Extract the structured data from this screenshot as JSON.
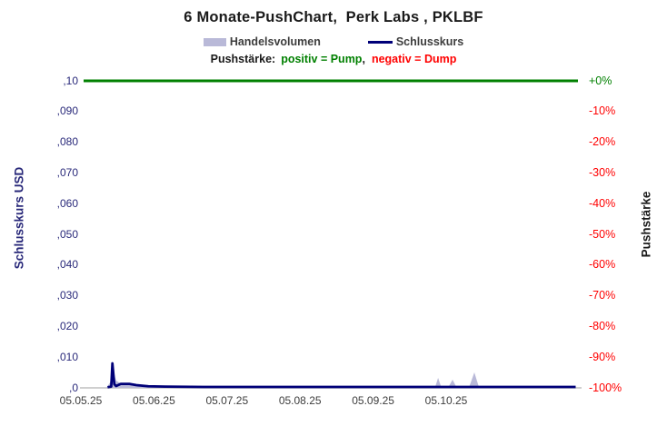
{
  "header": {
    "title": "6 Monate-PushChart,  Perk Labs , PKLBF"
  },
  "legend": {
    "volume_label": "Handelsvolumen",
    "close_label": "Schlusskurs"
  },
  "subtitle": {
    "prefix": "Pushstärke:",
    "positive": "positiv = Pump",
    "comma": ",",
    "negative": "negativ = Dump"
  },
  "colors": {
    "close_line": "#000078",
    "volume_fill": "#b9b9d8",
    "reference_line": "#008000",
    "left_tick_text": "#29297a",
    "right_tick_positive": "#008000",
    "right_tick_negative": "#ff0000",
    "axis_line": "#bfbfbf",
    "text_dark": "#3d3d3d"
  },
  "chart_data": {
    "type": "line",
    "title": "6 Monate-PushChart, Perk Labs , PKLBF",
    "ylabel_left": "Schlusskurs USD",
    "ylabel_right": "Pushstärke",
    "ylim_left_usd": [
      0,
      0.1
    ],
    "ylim_right_pct": [
      -100,
      0
    ],
    "grid": false,
    "legend_position": "top",
    "left_ticks": [
      ",10",
      ",090",
      ",080",
      ",070",
      ",060",
      ",050",
      ",040",
      ",030",
      ",020",
      ",010",
      ",0"
    ],
    "right_ticks": [
      "+0%",
      "-10%",
      "-20%",
      "-30%",
      "-40%",
      "-50%",
      "-60%",
      "-70%",
      "-80%",
      "-90%",
      "-100%"
    ],
    "x_ticks": [
      "05.05.25",
      "05.06.25",
      "05.07.25",
      "05.08.25",
      "05.09.25",
      "05.10.25"
    ],
    "x_unit_note": "t = days after 05.05.25 (dd.mm.yy), monthly ticks",
    "reference_line": {
      "label": "+0%",
      "value_pct": 0,
      "color": "#008000"
    },
    "series": [
      {
        "name": "Schlusskurs",
        "type": "line",
        "unit": "USD",
        "points_t_usd": [
          [
            10,
            0.0002
          ],
          [
            11.5,
            0.0004
          ],
          [
            12,
            0.008
          ],
          [
            12.8,
            0.0012
          ],
          [
            13.5,
            0.0006
          ],
          [
            15.5,
            0.0013
          ],
          [
            19,
            0.0013
          ],
          [
            22,
            0.0009
          ],
          [
            27,
            0.0005
          ],
          [
            34,
            0.0004
          ],
          [
            50,
            0.0003
          ],
          [
            90,
            0.0003
          ],
          [
            140,
            0.0003
          ],
          [
            205,
            0.0003
          ]
        ]
      },
      {
        "name": "Handelsvolumen",
        "type": "area",
        "unit": "relative_volume_0_to_1",
        "points_t_rel": [
          [
            9.5,
            0
          ],
          [
            11,
            0.3
          ],
          [
            12.3,
            1.0
          ],
          [
            13.5,
            0.4
          ],
          [
            15,
            0.28
          ],
          [
            17.5,
            0.18
          ],
          [
            21,
            0.1
          ],
          [
            25,
            0.05
          ],
          [
            30,
            0.02
          ],
          [
            36,
            0
          ],
          [
            145,
            0
          ],
          [
            146.5,
            0.05
          ],
          [
            147.7,
            0.55
          ],
          [
            149,
            0.05
          ],
          [
            150.5,
            0
          ],
          [
            152,
            0.05
          ],
          [
            153.7,
            0.45
          ],
          [
            155.5,
            0
          ],
          [
            160.5,
            0
          ],
          [
            162.8,
            0.85
          ],
          [
            164.8,
            0
          ],
          [
            205,
            0
          ]
        ]
      }
    ]
  }
}
